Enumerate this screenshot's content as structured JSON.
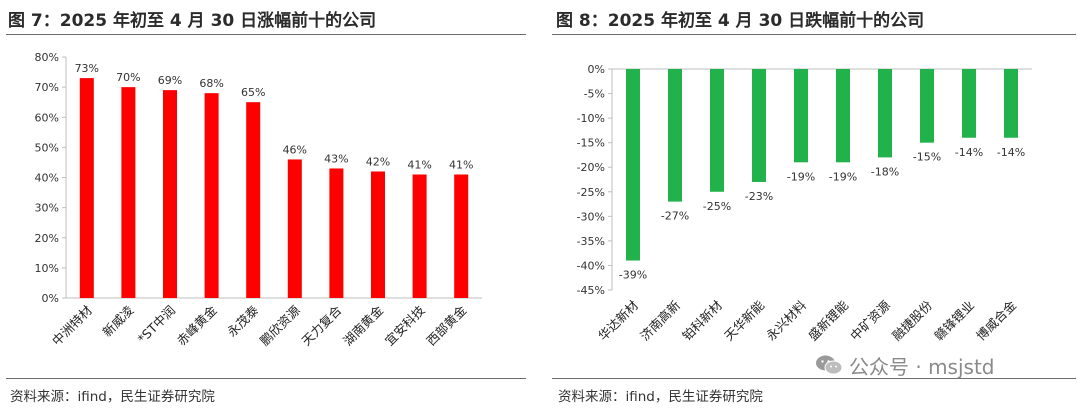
{
  "left": {
    "title": "图 7：2025 年初至 4 月 30 日涨幅前十的公司",
    "source": "资料来源：ifind，民生证券研究院"
  },
  "right": {
    "title": "图 8：2025 年初至 4 月 30 日跌幅前十的公司",
    "source": "资料来源：ifind，民生证券研究院"
  },
  "watermark": {
    "icon": "wechat-icon",
    "text": "公众号 · msjstd"
  },
  "chart_data": [
    {
      "type": "bar",
      "title": "",
      "categories": [
        "中洲特材",
        "新威凌",
        "*ST中润",
        "赤峰黄金",
        "永茂泰",
        "鹏欣资源",
        "天力复合",
        "湖南黄金",
        "宜安科技",
        "西部黄金"
      ],
      "values": [
        73,
        70,
        69,
        68,
        65,
        46,
        43,
        42,
        41,
        41
      ],
      "data_labels": [
        "73%",
        "70%",
        "69%",
        "68%",
        "65%",
        "46%",
        "43%",
        "42%",
        "41%",
        "41%"
      ],
      "ylim": [
        0,
        80
      ],
      "yticks": [
        0,
        10,
        20,
        30,
        40,
        50,
        60,
        70,
        80
      ],
      "ytick_labels": [
        "0%",
        "10%",
        "20%",
        "30%",
        "40%",
        "50%",
        "60%",
        "70%",
        "80%"
      ],
      "color": "#ff0000",
      "grid": false
    },
    {
      "type": "bar",
      "title": "",
      "categories": [
        "华达新材",
        "济南高新",
        "铂科新材",
        "天华新能",
        "永兴材料",
        "盛新锂能",
        "中矿资源",
        "融捷股份",
        "赣锋锂业",
        "博威合金"
      ],
      "values": [
        -39,
        -27,
        -25,
        -23,
        -19,
        -19,
        -18,
        -15,
        -14,
        -14
      ],
      "data_labels": [
        "-39%",
        "-27%",
        "-25%",
        "-23%",
        "-19%",
        "-19%",
        "-18%",
        "-15%",
        "-14%",
        "-14%"
      ],
      "ylim": [
        -45,
        0
      ],
      "yticks": [
        0,
        -5,
        -10,
        -15,
        -20,
        -25,
        -30,
        -35,
        -40,
        -45
      ],
      "ytick_labels": [
        "0%",
        "-5%",
        "-10%",
        "-15%",
        "-20%",
        "-25%",
        "-30%",
        "-35%",
        "-40%",
        "-45%"
      ],
      "color": "#21b24b",
      "grid": false
    }
  ]
}
